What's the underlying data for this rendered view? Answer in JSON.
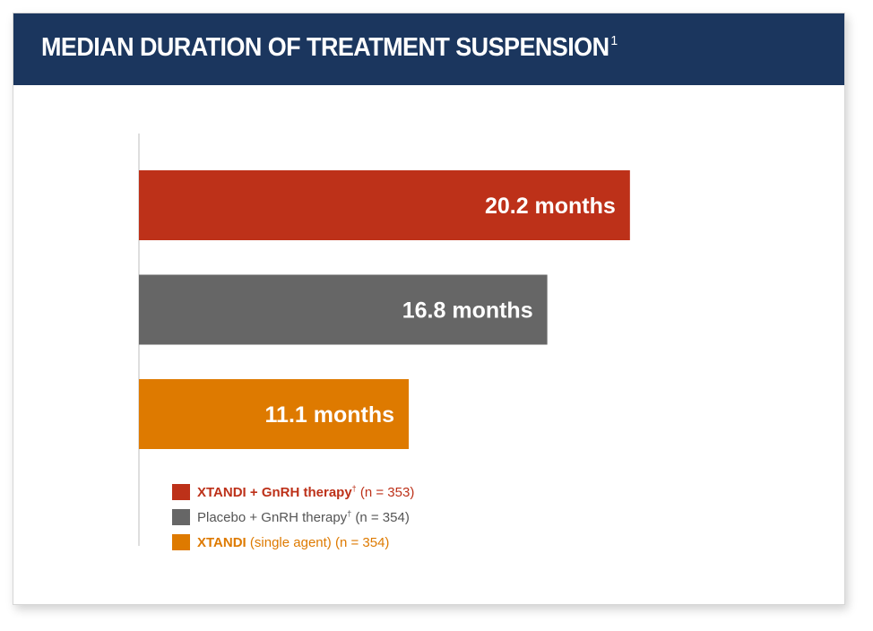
{
  "header": {
    "title": "MEDIAN DURATION OF TREATMENT SUSPENSION",
    "title_ref": "1"
  },
  "chart_data": {
    "type": "bar",
    "orientation": "horizontal",
    "xlim": [
      0,
      25
    ],
    "unit": "months",
    "series": [
      {
        "value": 20.2,
        "label": "20.2 months",
        "color": "#bd3119"
      },
      {
        "value": 16.8,
        "label": "16.8 months",
        "color": "#666666"
      },
      {
        "value": 11.1,
        "label": "11.1 months",
        "color": "#de7a00"
      }
    ],
    "legend_placement": "bottom-left"
  },
  "legend": [
    {
      "strong": "XTANDI + GnRH therapy",
      "dagger": "†",
      "rest": " (n = 353)",
      "color": "#bd3119",
      "text_color": "#bd3119"
    },
    {
      "strong": "",
      "plain": "Placebo + GnRH therapy",
      "dagger": "†",
      "rest": " (n = 354)",
      "color": "#666666",
      "text_color": "#555555"
    },
    {
      "strong": "XTANDI",
      "dagger": "",
      "rest": " (single agent) (n = 354)",
      "color": "#de7a00",
      "text_color": "#de7a00"
    }
  ]
}
